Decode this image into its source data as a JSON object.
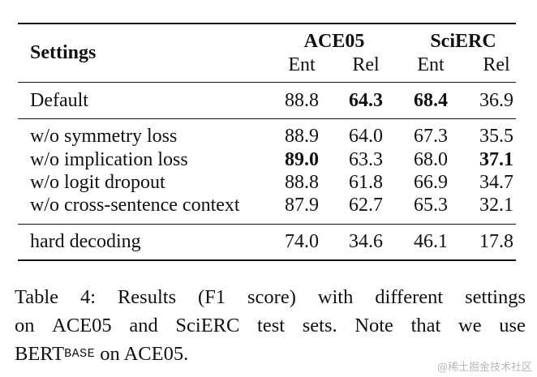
{
  "table": {
    "header": {
      "settings_label": "Settings",
      "groups": [
        {
          "title": "ACE05",
          "subcols": [
            "Ent",
            "Rel"
          ]
        },
        {
          "title": "SciERC",
          "subcols": [
            "Ent",
            "Rel"
          ]
        }
      ]
    },
    "default_row": {
      "label": "Default",
      "values": [
        "88.8",
        "64.3",
        "68.4",
        "36.9"
      ],
      "bold": [
        false,
        true,
        true,
        false
      ]
    },
    "ablation_rows": [
      {
        "label": "w/o symmetry loss",
        "values": [
          "88.9",
          "64.0",
          "67.3",
          "35.5"
        ],
        "bold": [
          false,
          false,
          false,
          false
        ]
      },
      {
        "label": "w/o implication loss",
        "values": [
          "89.0",
          "63.3",
          "68.0",
          "37.1"
        ],
        "bold": [
          true,
          false,
          false,
          true
        ]
      },
      {
        "label": "w/o logit dropout",
        "values": [
          "88.8",
          "61.8",
          "66.9",
          "34.7"
        ],
        "bold": [
          false,
          false,
          false,
          false
        ]
      },
      {
        "label": "w/o cross-sentence context",
        "values": [
          "87.9",
          "62.7",
          "65.3",
          "32.1"
        ],
        "bold": [
          false,
          false,
          false,
          false
        ]
      }
    ],
    "final_row": {
      "label": "hard decoding",
      "values": [
        "74.0",
        "34.6",
        "46.1",
        "17.8"
      ],
      "bold": [
        false,
        false,
        false,
        false
      ]
    }
  },
  "caption": {
    "line1": [
      "Table",
      "4:",
      "Results",
      "(F1",
      "score)",
      "with",
      "different",
      "settings"
    ],
    "line2": [
      "on",
      "ACE05",
      "and",
      "SciERC",
      "test",
      "sets.",
      "Note",
      "that",
      "we",
      "use"
    ],
    "line3_prefix": "BERT",
    "line3_sub": "BASE",
    "line3_suffix": " on ACE05."
  },
  "watermark": "@稀土掘金技术社区"
}
